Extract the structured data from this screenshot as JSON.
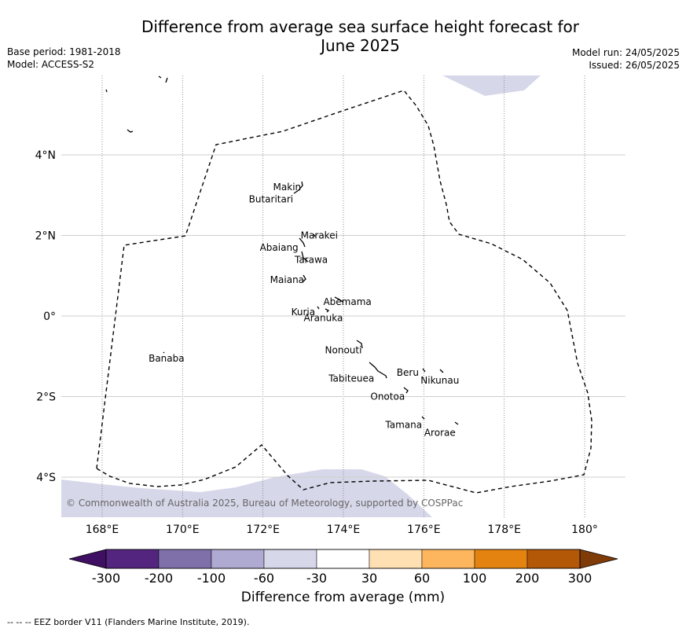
{
  "title_line1": "Difference from average sea surface height forecast for",
  "title_line2": "June 2025",
  "meta_left": [
    "Base period: 1981-2018",
    "Model: ACCESS-S2"
  ],
  "meta_right": [
    "Model run: 24/05/2025",
    "Issued: 26/05/2025"
  ],
  "copyright": "© Commonwealth of Australia 2025, Bureau of Meteorology, supported by COSPPac",
  "footer": "--  --  -- EEZ border V11 (Flanders Marine Institute, 2019).",
  "map": {
    "lon_range": [
      167,
      181
    ],
    "lat_range": [
      -5,
      6
    ],
    "lon_ticks": [
      {
        "value": 168,
        "label": "168°E"
      },
      {
        "value": 170,
        "label": "170°E"
      },
      {
        "value": 172,
        "label": "172°E"
      },
      {
        "value": 174,
        "label": "174°E"
      },
      {
        "value": 176,
        "label": "176°E"
      },
      {
        "value": 178,
        "label": "178°E"
      },
      {
        "value": 180,
        "label": "180°"
      }
    ],
    "lat_ticks": [
      {
        "value": 4,
        "label": "4°N"
      },
      {
        "value": 2,
        "label": "2°N"
      },
      {
        "value": 0,
        "label": "0°"
      },
      {
        "value": -2,
        "label": "2°S"
      },
      {
        "value": -4,
        "label": "4°S"
      }
    ],
    "place_labels": [
      {
        "name": "Makin",
        "lon": 172.6,
        "lat": 3.2
      },
      {
        "name": "Butaritari",
        "lon": 172.2,
        "lat": 2.9
      },
      {
        "name": "Marakei",
        "lon": 173.4,
        "lat": 2.0
      },
      {
        "name": "Abaiang",
        "lon": 172.4,
        "lat": 1.7
      },
      {
        "name": "Tarawa",
        "lon": 173.2,
        "lat": 1.4
      },
      {
        "name": "Maiana",
        "lon": 172.6,
        "lat": 0.9
      },
      {
        "name": "Abemama",
        "lon": 174.1,
        "lat": 0.35
      },
      {
        "name": "Kuria",
        "lon": 173.0,
        "lat": 0.1
      },
      {
        "name": "Aranuka",
        "lon": 173.5,
        "lat": -0.05
      },
      {
        "name": "Nonouti",
        "lon": 174.0,
        "lat": -0.85
      },
      {
        "name": "Banaba",
        "lon": 169.6,
        "lat": -1.05
      },
      {
        "name": "Beru",
        "lon": 175.6,
        "lat": -1.4
      },
      {
        "name": "Nikunau",
        "lon": 176.4,
        "lat": -1.6
      },
      {
        "name": "Tabiteuea",
        "lon": 174.2,
        "lat": -1.55
      },
      {
        "name": "Onotoa",
        "lon": 175.1,
        "lat": -2.0
      },
      {
        "name": "Tamana",
        "lon": 175.5,
        "lat": -2.7
      },
      {
        "name": "Arorae",
        "lon": 176.4,
        "lat": -2.9
      }
    ],
    "anomaly_color": "#d7d7ea"
  },
  "colorbar": {
    "title": "Difference from average (mm)",
    "ticks": [
      "-300",
      "-200",
      "-100",
      "-60",
      "-30",
      "30",
      "60",
      "100",
      "200",
      "300"
    ],
    "colors": [
      "#3f0f63",
      "#54257f",
      "#7f70aa",
      "#aeaad1",
      "#d7d7ea",
      "#ffffff",
      "#ffe0b3",
      "#fdb55e",
      "#e4830f",
      "#b35806",
      "#7f3b08"
    ]
  }
}
